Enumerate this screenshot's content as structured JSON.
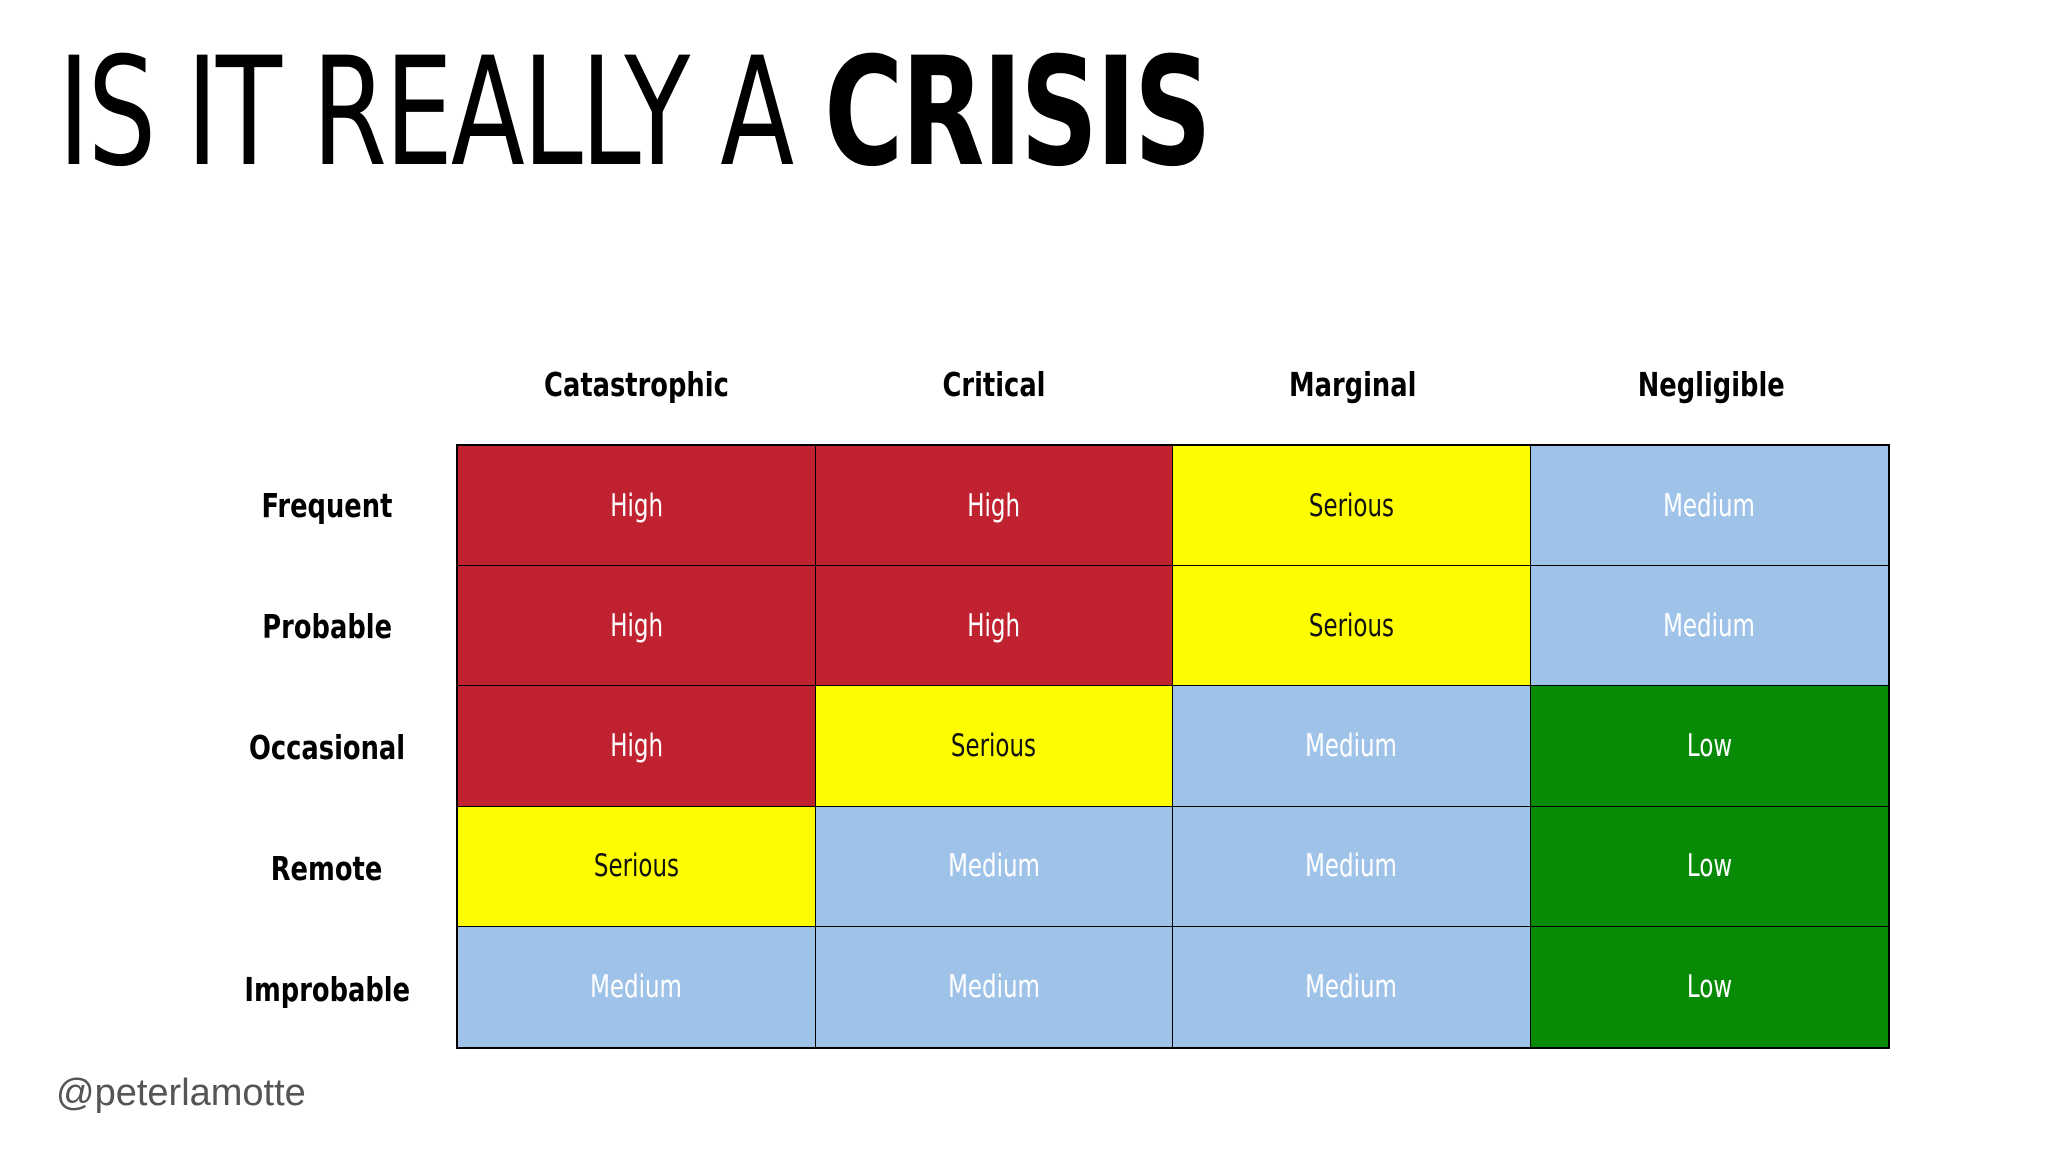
{
  "slide": {
    "title_light": "IS IT REALLY A ",
    "title_bold": "CRISIS",
    "handle": "@peterlamotte"
  },
  "colors": {
    "High": "#c0232f",
    "Serious": "#fdfc00",
    "Medium": "#9fc3e8",
    "Low": "#078a06"
  },
  "matrix": {
    "columns": [
      "Catastrophic",
      "Critical",
      "Marginal",
      "Negligible"
    ],
    "rows": [
      "Frequent",
      "Probable",
      "Occasional",
      "Remote",
      "Improbable"
    ],
    "cells": [
      [
        "High",
        "High",
        "Serious",
        "Medium"
      ],
      [
        "High",
        "High",
        "Serious",
        "Medium"
      ],
      [
        "High",
        "Serious",
        "Medium",
        "Low"
      ],
      [
        "Serious",
        "Medium",
        "Medium",
        "Low"
      ],
      [
        "Medium",
        "Medium",
        "Medium",
        "Low"
      ]
    ]
  }
}
